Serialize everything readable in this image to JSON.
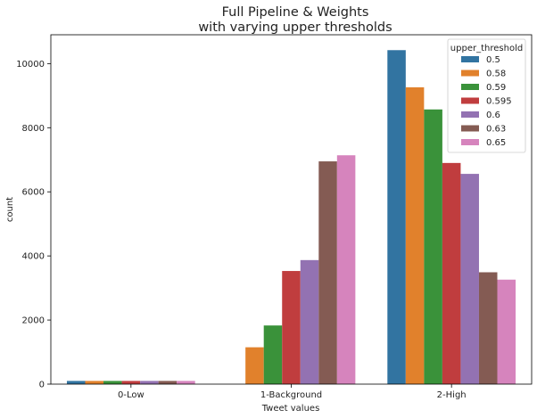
{
  "chart_data": {
    "type": "bar",
    "title_line1": "Full Pipeline & Weights",
    "title_line2": "with varying upper thresholds",
    "xlabel": "Tweet values",
    "ylabel": "count",
    "categories": [
      "0-Low",
      "1-Background",
      "2-High"
    ],
    "ylim": [
      0,
      10900
    ],
    "yticks": [
      0,
      2000,
      4000,
      6000,
      8000,
      10000
    ],
    "grid": false,
    "legend": {
      "title": "upper_threshold",
      "placement": "top-right"
    },
    "series": [
      {
        "name": "0.5",
        "color": "#3274a1",
        "values": [
          100,
          0,
          10420
        ]
      },
      {
        "name": "0.58",
        "color": "#e1812c",
        "values": [
          100,
          1150,
          9260
        ]
      },
      {
        "name": "0.59",
        "color": "#3a923a",
        "values": [
          100,
          1830,
          8570
        ]
      },
      {
        "name": "0.595",
        "color": "#c03d3e",
        "values": [
          100,
          3530,
          6900
        ]
      },
      {
        "name": "0.6",
        "color": "#9372b2",
        "values": [
          100,
          3870,
          6560
        ]
      },
      {
        "name": "0.63",
        "color": "#845b53",
        "values": [
          100,
          6950,
          3490
        ]
      },
      {
        "name": "0.65",
        "color": "#d684bd",
        "values": [
          100,
          7140,
          3260
        ]
      }
    ]
  }
}
